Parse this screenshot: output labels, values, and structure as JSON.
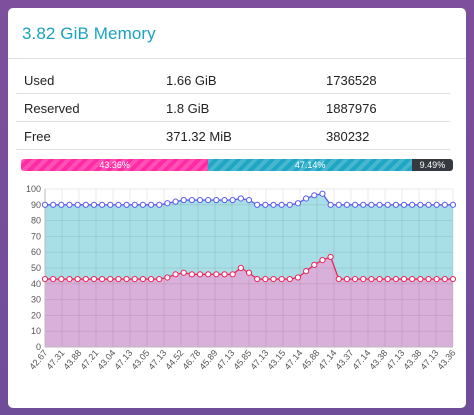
{
  "title": "3.82 GiB Memory",
  "table": [
    {
      "label": "Used",
      "size": "1.66 GiB",
      "pages": "1736528"
    },
    {
      "label": "Reserved",
      "size": "1.8 GiB",
      "pages": "1887976"
    },
    {
      "label": "Free",
      "size": "371.32 MiB",
      "pages": "380232"
    }
  ],
  "bar": [
    {
      "label": "43.36%",
      "value": 43.36,
      "color": "#ff2ba4"
    },
    {
      "label": "47.14%",
      "value": 47.14,
      "color": "#1fa6c4"
    },
    {
      "label": "9.49%",
      "value": 9.49,
      "color": "#343a40"
    }
  ],
  "chart_data": {
    "type": "area",
    "y_ticks": [
      "0",
      "10",
      "20",
      "30",
      "40",
      "50",
      "60",
      "70",
      "80",
      "90",
      "100"
    ],
    "ylim": [
      0,
      100
    ],
    "x_labels": [
      "42.67",
      "47.31",
      "43.88",
      "47.21",
      "43.04",
      "47.13",
      "43.05",
      "47.13",
      "44.52",
      "46.78",
      "45.89",
      "47.13",
      "45.85",
      "47.13",
      "43.15",
      "47.14",
      "45.88",
      "47.14",
      "43.37",
      "47.14",
      "43.38",
      "47.13",
      "43.38",
      "47.13",
      "43.36"
    ],
    "series": [
      {
        "color": "#5b5bf0",
        "fill": "#a8dfe6",
        "values": [
          90,
          90,
          90,
          90,
          90,
          90,
          90,
          90,
          90,
          90,
          90,
          90,
          90,
          90,
          90,
          91,
          92,
          93,
          93,
          93,
          93,
          93,
          93,
          93,
          94,
          93,
          90,
          90,
          90,
          90,
          90,
          91,
          94,
          96,
          97,
          90,
          90,
          90,
          90,
          90,
          90,
          90,
          90,
          90,
          90,
          90,
          90,
          90,
          90,
          90,
          90
        ]
      },
      {
        "color": "#f0245c",
        "fill": "#d8b0d9",
        "values": [
          43,
          43,
          43,
          43,
          43,
          43,
          43,
          43,
          43,
          43,
          43,
          43,
          43,
          43,
          43,
          44,
          46,
          47,
          46,
          46,
          46,
          46,
          46,
          46,
          50,
          47,
          43,
          43,
          43,
          43,
          43,
          44,
          48,
          52,
          55,
          57,
          43,
          43,
          43,
          43,
          43,
          43,
          43,
          43,
          43,
          43,
          43,
          43,
          43,
          43,
          43
        ]
      }
    ]
  }
}
